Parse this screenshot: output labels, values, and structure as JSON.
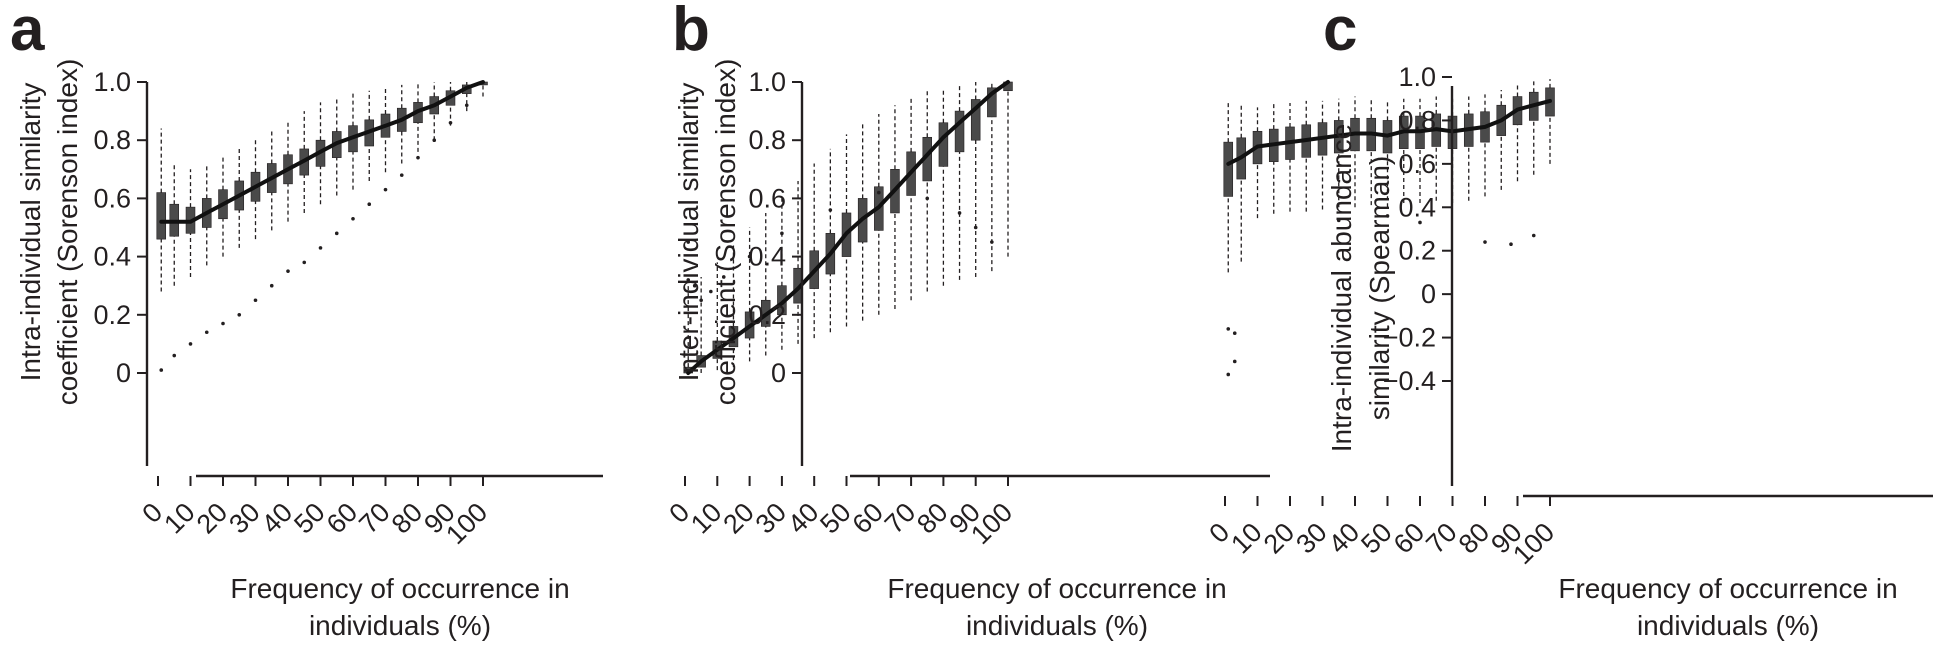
{
  "chart_data": [
    {
      "panel": "a",
      "type": "box",
      "xlabel_lines": [
        "Frequency of occurrence in",
        "individuals (%)"
      ],
      "ylabel_lines": [
        "Intra-individual similarity",
        "coefficient (Sorenson index)"
      ],
      "xlim": [
        0,
        100
      ],
      "ylim": [
        0,
        1.0
      ],
      "xticks": [
        0,
        10,
        20,
        30,
        40,
        50,
        60,
        70,
        80,
        90,
        100
      ],
      "xtick_labels": [
        "0",
        "10",
        "20",
        "30",
        "40",
        "50",
        "60",
        "70",
        "80",
        "90",
        "100"
      ],
      "yticks": [
        0,
        0.2,
        0.4,
        0.6,
        0.8,
        1.0
      ],
      "ytick_labels": [
        "0",
        "0.2",
        "0.4",
        "0.6",
        "0.8",
        "1.0"
      ],
      "grid": false,
      "x": [
        1,
        5,
        10,
        15,
        20,
        25,
        30,
        35,
        40,
        45,
        50,
        55,
        60,
        65,
        70,
        75,
        80,
        85,
        90,
        95,
        100
      ],
      "median": [
        0.52,
        0.52,
        0.52,
        0.55,
        0.58,
        0.61,
        0.64,
        0.67,
        0.7,
        0.73,
        0.76,
        0.79,
        0.81,
        0.83,
        0.85,
        0.87,
        0.9,
        0.92,
        0.95,
        0.98,
        1.0
      ],
      "q1": [
        0.46,
        0.47,
        0.48,
        0.5,
        0.53,
        0.56,
        0.59,
        0.62,
        0.65,
        0.68,
        0.71,
        0.74,
        0.76,
        0.78,
        0.81,
        0.83,
        0.86,
        0.89,
        0.92,
        0.96,
        0.99
      ],
      "q3": [
        0.62,
        0.58,
        0.57,
        0.6,
        0.63,
        0.66,
        0.69,
        0.72,
        0.75,
        0.77,
        0.8,
        0.83,
        0.85,
        0.87,
        0.89,
        0.91,
        0.93,
        0.95,
        0.97,
        0.99,
        1.0
      ],
      "low": [
        0.28,
        0.3,
        0.33,
        0.37,
        0.4,
        0.43,
        0.46,
        0.49,
        0.52,
        0.55,
        0.58,
        0.61,
        0.63,
        0.66,
        0.69,
        0.72,
        0.76,
        0.8,
        0.85,
        0.9,
        0.95
      ],
      "high": [
        0.84,
        0.72,
        0.7,
        0.72,
        0.75,
        0.78,
        0.81,
        0.84,
        0.87,
        0.9,
        0.93,
        0.95,
        0.96,
        0.97,
        0.98,
        0.99,
        1.0,
        1.0,
        1.0,
        1.0,
        1.0
      ],
      "outliers_x": [
        1,
        5,
        10,
        15,
        20,
        25,
        30,
        35,
        40,
        45,
        50,
        55,
        60,
        65,
        70,
        75,
        80,
        85,
        90,
        95
      ],
      "outliers_y": [
        0.01,
        0.06,
        0.1,
        0.14,
        0.17,
        0.2,
        0.25,
        0.3,
        0.35,
        0.38,
        0.43,
        0.48,
        0.53,
        0.58,
        0.63,
        0.68,
        0.74,
        0.8,
        0.86,
        0.92
      ]
    },
    {
      "panel": "b",
      "type": "box",
      "xlabel_lines": [
        "Frequency of occurrence in",
        "individuals (%)"
      ],
      "ylabel_lines": [
        "Inter-individual similarity",
        "coefficient (Sorenson index)"
      ],
      "xlim": [
        0,
        100
      ],
      "ylim": [
        0,
        1.0
      ],
      "xticks": [
        0,
        10,
        20,
        30,
        40,
        50,
        60,
        70,
        80,
        90,
        100
      ],
      "xtick_labels": [
        "0",
        "10",
        "20",
        "30",
        "40",
        "50",
        "60",
        "70",
        "80",
        "90",
        "100"
      ],
      "yticks": [
        0,
        0.2,
        0.4,
        0.6,
        0.8,
        1.0
      ],
      "ytick_labels": [
        "0",
        "0.2",
        "0.4",
        "0.6",
        "0.8",
        "1.0"
      ],
      "grid": false,
      "x": [
        1,
        5,
        10,
        15,
        20,
        25,
        30,
        35,
        40,
        45,
        50,
        55,
        60,
        65,
        70,
        75,
        80,
        85,
        90,
        95,
        100
      ],
      "median": [
        0.0,
        0.04,
        0.08,
        0.12,
        0.16,
        0.2,
        0.24,
        0.29,
        0.35,
        0.41,
        0.48,
        0.53,
        0.57,
        0.63,
        0.69,
        0.75,
        0.81,
        0.86,
        0.91,
        0.96,
        1.0
      ],
      "q1": [
        0.0,
        0.02,
        0.05,
        0.09,
        0.12,
        0.16,
        0.2,
        0.24,
        0.29,
        0.34,
        0.4,
        0.45,
        0.49,
        0.55,
        0.61,
        0.66,
        0.71,
        0.76,
        0.8,
        0.88,
        0.97
      ],
      "q3": [
        0.02,
        0.06,
        0.11,
        0.16,
        0.21,
        0.25,
        0.3,
        0.36,
        0.42,
        0.48,
        0.55,
        0.6,
        0.64,
        0.7,
        0.76,
        0.81,
        0.86,
        0.9,
        0.94,
        0.98,
        1.0
      ],
      "low": [
        0.0,
        0.0,
        0.01,
        0.02,
        0.04,
        0.06,
        0.08,
        0.1,
        0.12,
        0.14,
        0.16,
        0.18,
        0.2,
        0.22,
        0.25,
        0.28,
        0.3,
        0.32,
        0.33,
        0.35,
        0.4
      ],
      "high": [
        0.3,
        0.33,
        0.38,
        0.44,
        0.5,
        0.55,
        0.6,
        0.66,
        0.72,
        0.77,
        0.82,
        0.86,
        0.89,
        0.92,
        0.95,
        0.97,
        0.98,
        0.99,
        1.0,
        1.0,
        1.0
      ],
      "outliers_x": [
        1,
        1,
        3,
        5,
        8,
        12,
        20,
        30,
        45,
        60,
        75,
        85,
        90,
        95
      ],
      "outliers_y": [
        0.45,
        0.32,
        0.3,
        0.25,
        0.28,
        0.33,
        0.4,
        0.48,
        0.56,
        0.62,
        0.6,
        0.55,
        0.5,
        0.45
      ]
    },
    {
      "panel": "c",
      "type": "box",
      "xlabel_lines": [
        "Frequency of occurrence in",
        "individuals (%)"
      ],
      "ylabel_lines": [
        "Intra-individual abundance",
        "similarity (Spearman)"
      ],
      "xlim": [
        0,
        100
      ],
      "ylim": [
        -0.4,
        1.0
      ],
      "xticks": [
        0,
        10,
        20,
        30,
        40,
        50,
        60,
        70,
        80,
        90,
        100
      ],
      "xtick_labels": [
        "0",
        "10",
        "20",
        "30",
        "40",
        "50",
        "60",
        "70",
        "80",
        "90",
        "100"
      ],
      "yticks": [
        -0.4,
        -0.2,
        0,
        0.2,
        0.4,
        0.6,
        0.8,
        1.0
      ],
      "ytick_labels": [
        "−0.4",
        "−0.2",
        "0",
        "0.2",
        "0.4",
        "0.6",
        "0.8",
        "1.0"
      ],
      "grid": false,
      "x": [
        1,
        5,
        10,
        15,
        20,
        25,
        30,
        35,
        40,
        45,
        50,
        55,
        60,
        65,
        70,
        75,
        80,
        85,
        90,
        95,
        100
      ],
      "median": [
        0.6,
        0.63,
        0.68,
        0.69,
        0.7,
        0.71,
        0.72,
        0.73,
        0.74,
        0.74,
        0.73,
        0.75,
        0.75,
        0.76,
        0.75,
        0.76,
        0.77,
        0.8,
        0.85,
        0.87,
        0.89
      ],
      "q1": [
        0.45,
        0.53,
        0.6,
        0.61,
        0.62,
        0.63,
        0.64,
        0.65,
        0.66,
        0.66,
        0.65,
        0.67,
        0.67,
        0.68,
        0.67,
        0.68,
        0.7,
        0.73,
        0.78,
        0.8,
        0.82
      ],
      "q3": [
        0.7,
        0.72,
        0.75,
        0.76,
        0.77,
        0.78,
        0.79,
        0.8,
        0.81,
        0.81,
        0.8,
        0.82,
        0.82,
        0.83,
        0.82,
        0.83,
        0.84,
        0.87,
        0.91,
        0.93,
        0.95
      ],
      "low": [
        0.1,
        0.15,
        0.35,
        0.37,
        0.38,
        0.38,
        0.39,
        0.4,
        0.4,
        0.41,
        0.4,
        0.42,
        0.42,
        0.43,
        0.42,
        0.43,
        0.45,
        0.48,
        0.52,
        0.55,
        0.6
      ],
      "high": [
        0.88,
        0.87,
        0.86,
        0.88,
        0.88,
        0.89,
        0.89,
        0.9,
        0.91,
        0.9,
        0.89,
        0.9,
        0.9,
        0.91,
        0.9,
        0.91,
        0.92,
        0.94,
        0.97,
        0.98,
        0.99
      ],
      "outliers_x": [
        1,
        1,
        3,
        3,
        35,
        50,
        60,
        80,
        88,
        95
      ],
      "outliers_y": [
        -0.37,
        -0.16,
        -0.18,
        -0.31,
        0.34,
        0.36,
        0.33,
        0.24,
        0.23,
        0.27
      ]
    }
  ]
}
